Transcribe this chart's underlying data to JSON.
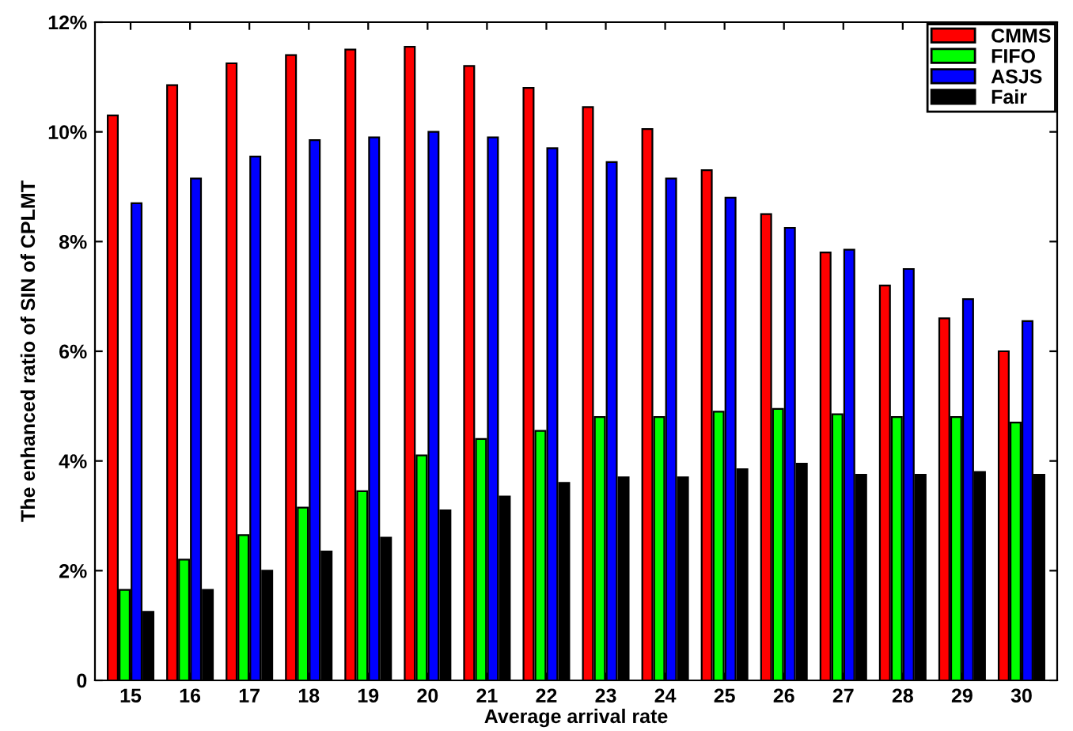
{
  "chart_data": {
    "type": "bar",
    "xlabel": "Average arrival rate",
    "ylabel": "The enhanced ratio of SIN of CPLMT",
    "categories": [
      "15",
      "16",
      "17",
      "18",
      "19",
      "20",
      "21",
      "22",
      "23",
      "24",
      "25",
      "26",
      "27",
      "28",
      "29",
      "30"
    ],
    "series": [
      {
        "name": "CMMS",
        "color": "#ff0000",
        "values": [
          10.3,
          10.85,
          11.25,
          11.4,
          11.5,
          11.55,
          11.2,
          10.8,
          10.45,
          10.05,
          9.3,
          8.5,
          7.8,
          7.2,
          6.6,
          6.0
        ]
      },
      {
        "name": "FIFO",
        "color": "#00ff00",
        "values": [
          1.65,
          2.2,
          2.65,
          3.15,
          3.45,
          4.1,
          4.4,
          4.55,
          4.8,
          4.8,
          4.9,
          4.95,
          4.85,
          4.8,
          4.8,
          4.7
        ]
      },
      {
        "name": "ASJS",
        "color": "#0000ff",
        "values": [
          8.7,
          9.15,
          9.55,
          9.85,
          9.9,
          10.0,
          9.9,
          9.7,
          9.45,
          9.15,
          8.8,
          8.25,
          7.85,
          7.5,
          6.95,
          6.55
        ]
      },
      {
        "name": "Fair",
        "color": "#000000",
        "values": [
          1.25,
          1.65,
          2.0,
          2.35,
          2.6,
          3.1,
          3.35,
          3.6,
          3.7,
          3.7,
          3.85,
          3.95,
          3.75,
          3.75,
          3.8,
          3.75
        ]
      }
    ],
    "ylim": [
      0,
      12
    ],
    "yticks": [
      {
        "value": 0,
        "label": "0"
      },
      {
        "value": 2,
        "label": "2%"
      },
      {
        "value": 4,
        "label": "4%"
      },
      {
        "value": 6,
        "label": "6%"
      },
      {
        "value": 8,
        "label": "8%"
      },
      {
        "value": 10,
        "label": "10%"
      },
      {
        "value": 12,
        "label": "12%"
      }
    ],
    "legend": "top right",
    "grid": false
  }
}
